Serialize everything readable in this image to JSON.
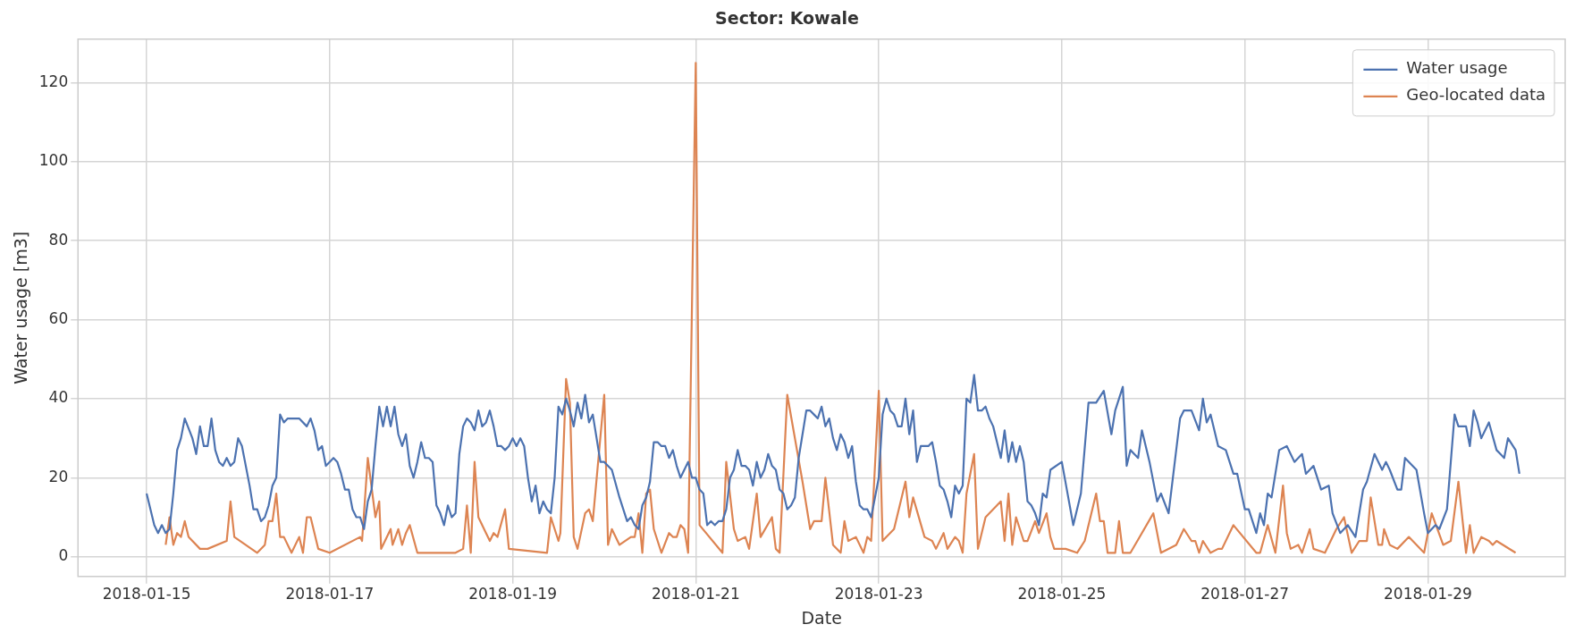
{
  "chart_data": {
    "type": "line",
    "title": "Sector: Kowale",
    "xlabel": "Date",
    "ylabel": "Water usage [m3]",
    "xlim": [
      "2018-01-14T06:00",
      "2018-01-30T12:00"
    ],
    "xticks": [
      "2018-01-15",
      "2018-01-17",
      "2018-01-19",
      "2018-01-21",
      "2018-01-23",
      "2018-01-25",
      "2018-01-27",
      "2018-01-29"
    ],
    "ylim": [
      -5,
      131
    ],
    "yticks": [
      0,
      20,
      40,
      60,
      80,
      100,
      120
    ],
    "grid": true,
    "legend": "top right",
    "marker": "none",
    "line_style": "solid",
    "series": [
      {
        "name": "Water usage",
        "color": "#4c72b0",
        "x": [
          "2018-01-15T00:00",
          "2018-01-15T02:00",
          "2018-01-15T03:00",
          "2018-01-15T04:00",
          "2018-01-15T05:00",
          "2018-01-15T06:00",
          "2018-01-15T07:00",
          "2018-01-15T08:00",
          "2018-01-15T09:00",
          "2018-01-15T10:00",
          "2018-01-15T12:00",
          "2018-01-15T13:00",
          "2018-01-15T14:00",
          "2018-01-15T15:00",
          "2018-01-15T16:00",
          "2018-01-15T17:00",
          "2018-01-15T18:00",
          "2018-01-15T19:00",
          "2018-01-15T20:00",
          "2018-01-15T21:00",
          "2018-01-15T22:00",
          "2018-01-15T23:00",
          "2018-01-16T00:00",
          "2018-01-16T01:00",
          "2018-01-16T03:00",
          "2018-01-16T04:00",
          "2018-01-16T05:00",
          "2018-01-16T06:00",
          "2018-01-16T07:00",
          "2018-01-16T08:00",
          "2018-01-16T09:00",
          "2018-01-16T10:00",
          "2018-01-16T11:00",
          "2018-01-16T12:00",
          "2018-01-16T13:00",
          "2018-01-16T14:00",
          "2018-01-16T16:00",
          "2018-01-16T18:00",
          "2018-01-16T19:00",
          "2018-01-16T20:00",
          "2018-01-16T21:00",
          "2018-01-16T22:00",
          "2018-01-16T23:00",
          "2018-01-17T00:00",
          "2018-01-17T01:00",
          "2018-01-17T02:00",
          "2018-01-17T03:00",
          "2018-01-17T04:00",
          "2018-01-17T05:00",
          "2018-01-17T06:00",
          "2018-01-17T07:00",
          "2018-01-17T08:00",
          "2018-01-17T09:00",
          "2018-01-17T10:00",
          "2018-01-17T11:00",
          "2018-01-17T12:00",
          "2018-01-17T13:00",
          "2018-01-17T14:00",
          "2018-01-17T15:00",
          "2018-01-17T16:00",
          "2018-01-17T17:00",
          "2018-01-17T18:00",
          "2018-01-17T19:00",
          "2018-01-17T20:00",
          "2018-01-17T21:00",
          "2018-01-17T22:00",
          "2018-01-17T23:00",
          "2018-01-18T00:00",
          "2018-01-18T01:00",
          "2018-01-18T02:00",
          "2018-01-18T03:00",
          "2018-01-18T04:00",
          "2018-01-18T05:00",
          "2018-01-18T06:00",
          "2018-01-18T07:00",
          "2018-01-18T08:00",
          "2018-01-18T09:00",
          "2018-01-18T10:00",
          "2018-01-18T11:00",
          "2018-01-18T12:00",
          "2018-01-18T13:00",
          "2018-01-18T14:00",
          "2018-01-18T15:00",
          "2018-01-18T16:00",
          "2018-01-18T17:00",
          "2018-01-18T18:00",
          "2018-01-18T19:00",
          "2018-01-18T20:00",
          "2018-01-18T21:00",
          "2018-01-18T22:00",
          "2018-01-18T23:00",
          "2018-01-19T00:00",
          "2018-01-19T01:00",
          "2018-01-19T02:00",
          "2018-01-19T03:00",
          "2018-01-19T04:00",
          "2018-01-19T05:00",
          "2018-01-19T06:00",
          "2018-01-19T07:00",
          "2018-01-19T08:00",
          "2018-01-19T09:00",
          "2018-01-19T10:00",
          "2018-01-19T11:00",
          "2018-01-19T12:00",
          "2018-01-19T13:00",
          "2018-01-19T14:00",
          "2018-01-19T15:00",
          "2018-01-19T16:00",
          "2018-01-19T17:00",
          "2018-01-19T18:00",
          "2018-01-19T19:00",
          "2018-01-19T20:00",
          "2018-01-19T21:00",
          "2018-01-19T22:00",
          "2018-01-19T23:00",
          "2018-01-20T00:00",
          "2018-01-20T02:00",
          "2018-01-20T04:00",
          "2018-01-20T06:00",
          "2018-01-20T07:00",
          "2018-01-20T08:00",
          "2018-01-20T09:00",
          "2018-01-20T10:00",
          "2018-01-20T11:00",
          "2018-01-20T12:00",
          "2018-01-20T13:00",
          "2018-01-20T14:00",
          "2018-01-20T15:00",
          "2018-01-20T16:00",
          "2018-01-20T17:00",
          "2018-01-20T18:00",
          "2018-01-20T19:00",
          "2018-01-20T20:00",
          "2018-01-20T21:00",
          "2018-01-20T22:00",
          "2018-01-20T23:00",
          "2018-01-21T00:00",
          "2018-01-21T01:00",
          "2018-01-21T02:00",
          "2018-01-21T03:00",
          "2018-01-21T04:00",
          "2018-01-21T05:00",
          "2018-01-21T06:00",
          "2018-01-21T07:00",
          "2018-01-21T08:00",
          "2018-01-21T09:00",
          "2018-01-21T10:00",
          "2018-01-21T11:00",
          "2018-01-21T12:00",
          "2018-01-21T13:00",
          "2018-01-21T14:00",
          "2018-01-21T15:00",
          "2018-01-21T16:00",
          "2018-01-21T17:00",
          "2018-01-21T18:00",
          "2018-01-21T19:00",
          "2018-01-21T20:00",
          "2018-01-21T21:00",
          "2018-01-21T22:00",
          "2018-01-21T23:00",
          "2018-01-22T00:00",
          "2018-01-22T01:00",
          "2018-01-22T02:00",
          "2018-01-22T03:00",
          "2018-01-22T04:00",
          "2018-01-22T05:00",
          "2018-01-22T06:00",
          "2018-01-22T07:00",
          "2018-01-22T08:00",
          "2018-01-22T09:00",
          "2018-01-22T10:00",
          "2018-01-22T11:00",
          "2018-01-22T12:00",
          "2018-01-22T13:00",
          "2018-01-22T14:00",
          "2018-01-22T15:00",
          "2018-01-22T16:00",
          "2018-01-22T17:00",
          "2018-01-22T18:00",
          "2018-01-22T19:00",
          "2018-01-22T20:00",
          "2018-01-22T21:00",
          "2018-01-22T22:00",
          "2018-01-22T23:00",
          "2018-01-23T00:00",
          "2018-01-23T01:00",
          "2018-01-23T02:00",
          "2018-01-23T03:00",
          "2018-01-23T04:00",
          "2018-01-23T05:00",
          "2018-01-23T06:00",
          "2018-01-23T07:00",
          "2018-01-23T08:00",
          "2018-01-23T09:00",
          "2018-01-23T10:00",
          "2018-01-23T11:00",
          "2018-01-23T12:00",
          "2018-01-23T13:00",
          "2018-01-23T14:00",
          "2018-01-23T15:00",
          "2018-01-23T16:00",
          "2018-01-23T17:00",
          "2018-01-23T18:00",
          "2018-01-23T19:00",
          "2018-01-23T20:00",
          "2018-01-23T21:00",
          "2018-01-23T22:00",
          "2018-01-23T23:00",
          "2018-01-24T00:00",
          "2018-01-24T01:00",
          "2018-01-24T02:00",
          "2018-01-24T03:00",
          "2018-01-24T04:00",
          "2018-01-24T05:00",
          "2018-01-24T06:00",
          "2018-01-24T07:00",
          "2018-01-24T08:00",
          "2018-01-24T09:00",
          "2018-01-24T10:00",
          "2018-01-24T11:00",
          "2018-01-24T12:00",
          "2018-01-24T13:00",
          "2018-01-24T14:00",
          "2018-01-24T15:00",
          "2018-01-24T16:00",
          "2018-01-24T17:00",
          "2018-01-24T18:00",
          "2018-01-24T19:00",
          "2018-01-24T20:00",
          "2018-01-24T21:00",
          "2018-01-25T00:00",
          "2018-01-25T03:00",
          "2018-01-25T05:00",
          "2018-01-25T07:00",
          "2018-01-25T09:00",
          "2018-01-25T11:00",
          "2018-01-25T13:00",
          "2018-01-25T14:00",
          "2018-01-25T16:00",
          "2018-01-25T17:00",
          "2018-01-25T18:00",
          "2018-01-25T20:00",
          "2018-01-25T21:00",
          "2018-01-25T23:00",
          "2018-01-26T01:00",
          "2018-01-26T02:00",
          "2018-01-26T04:00",
          "2018-01-26T07:00",
          "2018-01-26T08:00",
          "2018-01-26T10:00",
          "2018-01-26T12:00",
          "2018-01-26T13:00",
          "2018-01-26T14:00",
          "2018-01-26T15:00",
          "2018-01-26T17:00",
          "2018-01-26T19:00",
          "2018-01-26T21:00",
          "2018-01-26T22:00",
          "2018-01-27T00:00",
          "2018-01-27T01:00",
          "2018-01-27T03:00",
          "2018-01-27T04:00",
          "2018-01-27T05:00",
          "2018-01-27T06:00",
          "2018-01-27T07:00",
          "2018-01-27T09:00",
          "2018-01-27T11:00",
          "2018-01-27T13:00",
          "2018-01-27T15:00",
          "2018-01-27T16:00",
          "2018-01-27T18:00",
          "2018-01-27T20:00",
          "2018-01-27T22:00",
          "2018-01-27T23:00",
          "2018-01-28T01:00",
          "2018-01-28T03:00",
          "2018-01-28T05:00",
          "2018-01-28T07:00",
          "2018-01-28T08:00",
          "2018-01-28T10:00",
          "2018-01-28T12:00",
          "2018-01-28T13:00",
          "2018-01-28T14:00",
          "2018-01-28T16:00",
          "2018-01-28T17:00",
          "2018-01-28T18:00",
          "2018-01-28T21:00",
          "2018-01-28T23:00",
          "2018-01-29T00:00",
          "2018-01-29T02:00",
          "2018-01-29T03:00",
          "2018-01-29T05:00",
          "2018-01-29T07:00",
          "2018-01-29T08:00",
          "2018-01-29T10:00",
          "2018-01-29T11:00",
          "2018-01-29T12:00",
          "2018-01-29T13:00",
          "2018-01-29T14:00",
          "2018-01-29T16:00",
          "2018-01-29T18:00",
          "2018-01-29T19:00",
          "2018-01-29T20:00",
          "2018-01-29T21:00",
          "2018-01-29T23:00",
          "2018-01-30T00:00"
        ],
        "values": [
          16,
          8,
          6,
          8,
          6,
          7,
          16,
          27,
          30,
          35,
          30,
          26,
          33,
          28,
          28,
          35,
          27,
          24,
          23,
          25,
          23,
          24,
          30,
          28,
          18,
          12,
          12,
          9,
          10,
          13,
          18,
          20,
          36,
          34,
          35,
          35,
          35,
          33,
          35,
          32,
          27,
          28,
          23,
          24,
          25,
          24,
          21,
          17,
          17,
          12,
          10,
          10,
          7,
          14,
          17,
          28,
          38,
          33,
          38,
          33,
          38,
          31,
          28,
          31,
          23,
          20,
          24,
          29,
          25,
          25,
          24,
          13,
          11,
          8,
          13,
          10,
          11,
          26,
          33,
          35,
          34,
          32,
          37,
          33,
          34,
          37,
          33,
          28,
          28,
          27,
          28,
          30,
          28,
          30,
          28,
          20,
          14,
          18,
          11,
          14,
          12,
          11,
          20,
          38,
          36,
          40,
          37,
          33,
          39,
          35,
          41,
          34,
          36,
          30,
          24,
          24,
          22,
          15,
          9,
          10,
          8,
          7,
          13,
          15,
          19,
          29,
          29,
          28,
          28,
          25,
          27,
          23,
          20,
          22,
          24,
          20,
          20,
          17,
          16,
          8,
          9,
          8,
          9,
          9,
          12,
          20,
          22,
          27,
          23,
          23,
          22,
          18,
          24,
          20,
          22,
          26,
          23,
          22,
          17,
          16,
          12,
          13,
          15,
          25,
          31,
          37,
          37,
          36,
          35,
          38,
          33,
          35,
          30,
          27,
          31,
          29,
          25,
          28,
          19,
          13,
          12,
          12,
          10,
          15,
          20,
          36,
          40,
          37,
          36,
          33,
          33,
          40,
          31,
          37,
          24,
          28,
          28,
          28,
          29,
          24,
          18,
          17,
          14,
          10,
          18,
          16,
          18,
          40,
          39,
          46,
          37,
          37,
          38,
          35,
          33,
          29,
          25,
          32,
          24,
          29,
          24,
          28,
          24,
          14,
          13,
          11,
          8,
          16,
          15,
          22,
          24,
          8,
          16,
          39,
          39,
          42,
          31,
          37,
          43,
          23,
          27,
          25,
          32,
          24,
          14,
          16,
          11,
          35,
          37,
          37,
          32,
          40,
          34,
          36,
          28,
          27,
          21,
          21,
          12,
          12,
          6,
          11,
          8,
          16,
          15,
          27,
          28,
          24,
          26,
          21,
          23,
          17,
          18,
          11,
          6,
          8,
          5,
          17,
          19,
          26,
          22,
          24,
          22,
          17,
          17,
          25,
          22,
          11,
          6,
          8,
          7,
          12,
          36,
          33,
          33,
          28,
          37,
          34,
          30,
          34,
          27,
          26,
          25,
          30,
          27,
          21
        ]
      },
      {
        "name": "Geo-located data",
        "color": "#dd8452",
        "x": [
          "2018-01-15T05:00",
          "2018-01-15T06:00",
          "2018-01-15T07:00",
          "2018-01-15T08:00",
          "2018-01-15T09:00",
          "2018-01-15T10:00",
          "2018-01-15T11:00",
          "2018-01-15T14:00",
          "2018-01-15T16:00",
          "2018-01-15T21:00",
          "2018-01-15T22:00",
          "2018-01-15T23:00",
          "2018-01-16T05:00",
          "2018-01-16T07:00",
          "2018-01-16T08:00",
          "2018-01-16T09:00",
          "2018-01-16T10:00",
          "2018-01-16T11:00",
          "2018-01-16T12:00",
          "2018-01-16T14:00",
          "2018-01-16T16:00",
          "2018-01-16T17:00",
          "2018-01-16T18:00",
          "2018-01-16T19:00",
          "2018-01-16T21:00",
          "2018-01-17T00:00",
          "2018-01-17T08:00",
          "2018-01-17T08:30",
          "2018-01-17T10:00",
          "2018-01-17T12:00",
          "2018-01-17T13:00",
          "2018-01-17T13:30",
          "2018-01-17T14:00",
          "2018-01-17T16:00",
          "2018-01-17T16:30",
          "2018-01-17T18:00",
          "2018-01-17T19:00",
          "2018-01-17T20:00",
          "2018-01-17T21:00",
          "2018-01-17T23:00",
          "2018-01-18T09:00",
          "2018-01-18T11:00",
          "2018-01-18T12:00",
          "2018-01-18T13:00",
          "2018-01-18T14:00",
          "2018-01-18T15:00",
          "2018-01-18T17:00",
          "2018-01-18T18:00",
          "2018-01-18T19:00",
          "2018-01-18T20:00",
          "2018-01-18T22:00",
          "2018-01-18T23:00",
          "2018-01-19T09:00",
          "2018-01-19T10:00",
          "2018-01-19T12:00",
          "2018-01-19T12:30",
          "2018-01-19T14:00",
          "2018-01-19T15:00",
          "2018-01-19T16:00",
          "2018-01-19T17:00",
          "2018-01-19T19:00",
          "2018-01-19T20:00",
          "2018-01-19T21:00",
          "2018-01-20T00:00",
          "2018-01-20T01:00",
          "2018-01-20T02:00",
          "2018-01-20T04:00",
          "2018-01-20T07:00",
          "2018-01-20T08:00",
          "2018-01-20T09:00",
          "2018-01-20T10:00",
          "2018-01-20T11:00",
          "2018-01-20T12:00",
          "2018-01-20T13:00",
          "2018-01-20T15:00",
          "2018-01-20T17:00",
          "2018-01-20T18:00",
          "2018-01-20T19:00",
          "2018-01-20T20:00",
          "2018-01-20T21:00",
          "2018-01-20T22:00",
          "2018-01-21T00:00",
          "2018-01-21T01:00",
          "2018-01-21T07:00",
          "2018-01-21T08:00",
          "2018-01-21T10:00",
          "2018-01-21T11:00",
          "2018-01-21T13:00",
          "2018-01-21T14:00",
          "2018-01-21T16:00",
          "2018-01-21T17:00",
          "2018-01-21T20:00",
          "2018-01-21T21:00",
          "2018-01-21T22:00",
          "2018-01-22T00:00",
          "2018-01-22T04:00",
          "2018-01-22T06:00",
          "2018-01-22T07:00",
          "2018-01-22T09:00",
          "2018-01-22T10:00",
          "2018-01-22T12:00",
          "2018-01-22T14:00",
          "2018-01-22T15:00",
          "2018-01-22T16:00",
          "2018-01-22T18:00",
          "2018-01-22T20:00",
          "2018-01-22T21:00",
          "2018-01-22T22:00",
          "2018-01-23T00:00",
          "2018-01-23T01:00",
          "2018-01-23T02:00",
          "2018-01-23T04:00",
          "2018-01-23T07:00",
          "2018-01-23T08:00",
          "2018-01-23T09:00",
          "2018-01-23T12:00",
          "2018-01-23T14:00",
          "2018-01-23T15:00",
          "2018-01-23T17:00",
          "2018-01-23T18:00",
          "2018-01-23T20:00",
          "2018-01-23T21:00",
          "2018-01-23T22:00",
          "2018-01-23T23:00",
          "2018-01-24T01:00",
          "2018-01-24T02:00",
          "2018-01-24T04:00",
          "2018-01-24T08:00",
          "2018-01-24T09:00",
          "2018-01-24T10:00",
          "2018-01-24T11:00",
          "2018-01-24T12:00",
          "2018-01-24T14:00",
          "2018-01-24T15:00",
          "2018-01-24T17:00",
          "2018-01-24T18:00",
          "2018-01-24T20:00",
          "2018-01-24T21:00",
          "2018-01-24T22:00",
          "2018-01-25T01:00",
          "2018-01-25T04:00",
          "2018-01-25T06:00",
          "2018-01-25T09:00",
          "2018-01-25T10:00",
          "2018-01-25T11:00",
          "2018-01-25T12:00",
          "2018-01-25T14:00",
          "2018-01-25T15:00",
          "2018-01-25T16:00",
          "2018-01-25T18:00",
          "2018-01-26T00:00",
          "2018-01-26T02:00",
          "2018-01-26T06:00",
          "2018-01-26T08:00",
          "2018-01-26T10:00",
          "2018-01-26T11:00",
          "2018-01-26T12:00",
          "2018-01-26T13:00",
          "2018-01-26T15:00",
          "2018-01-26T17:00",
          "2018-01-26T18:00",
          "2018-01-26T21:00",
          "2018-01-27T03:00",
          "2018-01-27T04:00",
          "2018-01-27T06:00",
          "2018-01-27T08:00",
          "2018-01-27T10:00",
          "2018-01-27T11:00",
          "2018-01-27T12:00",
          "2018-01-27T14:00",
          "2018-01-27T15:00",
          "2018-01-27T17:00",
          "2018-01-27T18:00",
          "2018-01-27T21:00",
          "2018-01-28T00:00",
          "2018-01-28T02:00",
          "2018-01-28T04:00",
          "2018-01-28T06:00",
          "2018-01-28T08:00",
          "2018-01-28T09:00",
          "2018-01-28T11:00",
          "2018-01-28T12:00",
          "2018-01-28T12:30",
          "2018-01-28T14:00",
          "2018-01-28T16:00",
          "2018-01-28T19:00",
          "2018-01-28T23:00",
          "2018-01-29T01:00",
          "2018-01-29T04:00",
          "2018-01-29T06:00",
          "2018-01-29T08:00",
          "2018-01-29T10:00",
          "2018-01-29T11:00",
          "2018-01-29T12:00",
          "2018-01-29T14:00",
          "2018-01-29T16:00",
          "2018-01-29T17:00",
          "2018-01-29T18:00",
          "2018-01-29T23:00"
        ],
        "values": [
          3,
          10,
          3,
          6,
          5,
          9,
          5,
          2,
          2,
          4,
          14,
          5,
          1,
          3,
          9,
          9,
          16,
          5,
          5,
          1,
          5,
          1,
          10,
          10,
          2,
          1,
          5,
          4,
          25,
          10,
          14,
          2,
          3,
          7,
          3,
          7,
          3,
          6,
          8,
          1,
          1,
          2,
          13,
          1,
          24,
          10,
          6,
          4,
          6,
          5,
          12,
          2,
          1,
          10,
          4,
          6,
          45,
          39,
          5,
          2,
          11,
          12,
          9,
          41,
          3,
          7,
          3,
          5,
          5,
          11,
          1,
          16,
          17,
          7,
          1,
          6,
          5,
          5,
          8,
          7,
          1,
          125,
          8,
          1,
          24,
          7,
          4,
          5,
          2,
          16,
          5,
          10,
          2,
          1,
          41,
          19,
          7,
          9,
          9,
          20,
          3,
          1,
          9,
          4,
          5,
          1,
          5,
          4,
          42,
          4,
          5,
          7,
          19,
          10,
          15,
          5,
          4,
          2,
          6,
          2,
          5,
          4,
          1,
          16,
          26,
          2,
          10,
          14,
          4,
          16,
          3,
          10,
          4,
          4,
          9,
          6,
          11,
          5,
          2,
          2,
          1,
          4,
          16,
          9,
          9,
          1,
          1,
          9,
          1,
          1,
          11,
          1,
          3,
          7,
          4,
          4,
          1,
          4,
          1,
          2,
          2,
          8,
          1,
          1,
          8,
          1,
          18,
          6,
          2,
          3,
          1,
          7,
          2,
          1,
          7,
          10,
          1,
          4,
          4,
          15,
          3,
          3,
          7,
          3,
          2,
          5,
          1,
          11,
          3,
          4,
          19,
          1,
          8,
          1,
          5,
          4,
          3,
          4,
          1
        ]
      }
    ]
  }
}
